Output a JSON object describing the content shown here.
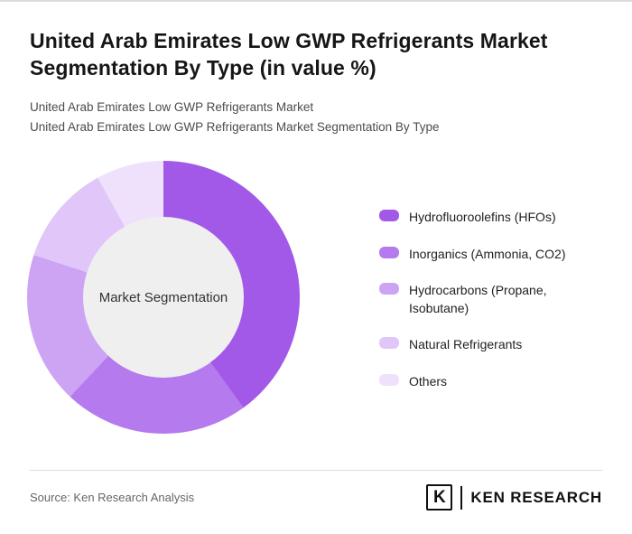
{
  "page": {
    "title": "United Arab Emirates Low GWP Refrigerants Market Segmentation By Type (in value %)",
    "subtitle_line1": "United Arab Emirates Low GWP Refrigerants Market",
    "subtitle_line2": "United Arab Emirates Low GWP Refrigerants Market Segmentation By Type"
  },
  "chart_data": {
    "type": "pie",
    "variant": "donut",
    "title": "United Arab Emirates Low GWP Refrigerants Market Segmentation By Type (in value %)",
    "center_label": "Market Segmentation",
    "unit": "value %",
    "labels": [
      "Hydrofluoroolefins (HFOs)",
      "Inorganics (Ammonia, CO2)",
      "Hydrocarbons (Propane, Isobutane)",
      "Natural Refrigerants",
      "Others"
    ],
    "values": [
      40,
      22,
      18,
      12,
      8
    ],
    "colors": [
      "#a259e8",
      "#b57bee",
      "#cda4f4",
      "#e0c6f9",
      "#efe1fc"
    ],
    "hole_color": "#efefef",
    "legend_position": "right",
    "start_angle_deg": 0,
    "direction": "clockwise"
  },
  "footer": {
    "source": "Source: Ken Research Analysis",
    "logo": {
      "letter": "K",
      "brand": "KEN RESEARCH"
    }
  }
}
